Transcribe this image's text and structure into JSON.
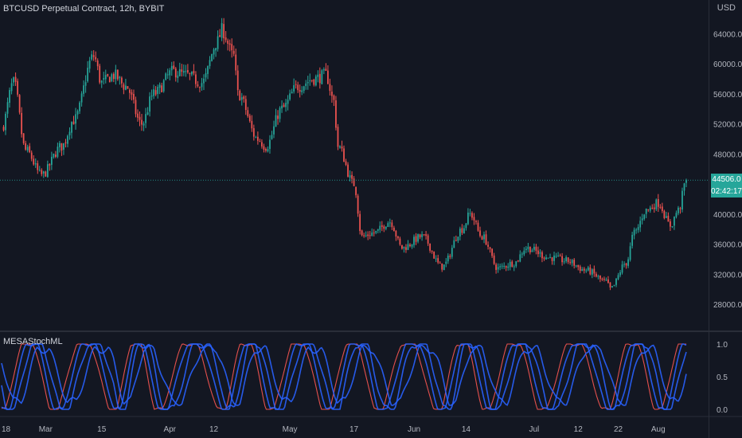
{
  "header": {
    "title": "BTCUSD Perpetual Contract, 12h, BYBIT",
    "currency": "USD"
  },
  "indicator": {
    "name": "MESAStochML"
  },
  "last_price": {
    "value": "44506.0",
    "countdown": "02:42:17"
  },
  "colors": {
    "background": "#131722",
    "up": "#26a69a",
    "down": "#ef5350",
    "stoch_blue": "#2962ff",
    "stoch_red": "#ef5350",
    "grid": "#2a2e39",
    "axis_text": "#b2b5be"
  },
  "chart_data": [
    {
      "type": "candlestick",
      "y_ticks": [
        28000,
        32000,
        36000,
        40000,
        44000,
        48000,
        52000,
        56000,
        60000,
        64000
      ],
      "y_tick_labels": [
        "28000.0",
        "32000.0",
        "36000.0",
        "40000.0",
        "44000.0",
        "48000.0",
        "52000.0",
        "56000.0",
        "60000.0",
        "64000.0"
      ],
      "ylim": [
        24500,
        68500
      ],
      "x_tick_labels": [
        "18",
        "Mar",
        "15",
        "Apr",
        "12",
        "May",
        "17",
        "Jun",
        "14",
        "Jul",
        "12",
        "22",
        "Aug"
      ],
      "x_range": [
        "2021-02-18",
        "2021-08-08"
      ],
      "close_anchors": [
        [
          "2021-02-18",
          51500
        ],
        [
          "2021-02-21",
          57500
        ],
        [
          "2021-02-24",
          48500
        ],
        [
          "2021-02-28",
          45200
        ],
        [
          "2021-03-05",
          49000
        ],
        [
          "2021-03-08",
          52500
        ],
        [
          "2021-03-13",
          61000
        ],
        [
          "2021-03-15",
          57500
        ],
        [
          "2021-03-18",
          58500
        ],
        [
          "2021-03-21",
          57000
        ],
        [
          "2021-03-25",
          52000
        ],
        [
          "2021-03-28",
          56000
        ],
        [
          "2021-04-02",
          59000
        ],
        [
          "2021-04-05",
          58500
        ],
        [
          "2021-04-09",
          57500
        ],
        [
          "2021-04-13",
          63000
        ],
        [
          "2021-04-14",
          64500
        ],
        [
          "2021-04-17",
          61000
        ],
        [
          "2021-04-18",
          56000
        ],
        [
          "2021-04-23",
          50000
        ],
        [
          "2021-04-25",
          49000
        ],
        [
          "2021-04-29",
          54000
        ],
        [
          "2021-05-03",
          57000
        ],
        [
          "2021-05-07",
          58000
        ],
        [
          "2021-05-10",
          58500
        ],
        [
          "2021-05-12",
          55000
        ],
        [
          "2021-05-13",
          49000
        ],
        [
          "2021-05-17",
          44000
        ],
        [
          "2021-05-19",
          37000
        ],
        [
          "2021-05-22",
          37500
        ],
        [
          "2021-05-26",
          39000
        ],
        [
          "2021-05-29",
          35500
        ],
        [
          "2021-06-03",
          37000
        ],
        [
          "2021-06-08",
          33000
        ],
        [
          "2021-06-13",
          38000
        ],
        [
          "2021-06-15",
          40000
        ],
        [
          "2021-06-18",
          37000
        ],
        [
          "2021-06-22",
          32800
        ],
        [
          "2021-06-26",
          33500
        ],
        [
          "2021-06-29",
          35500
        ],
        [
          "2021-07-05",
          34200
        ],
        [
          "2021-07-09",
          33800
        ],
        [
          "2021-07-14",
          32500
        ],
        [
          "2021-07-19",
          31000
        ],
        [
          "2021-07-20",
          30000
        ],
        [
          "2021-07-24",
          33500
        ],
        [
          "2021-07-26",
          37500
        ],
        [
          "2021-07-29",
          40500
        ],
        [
          "2021-08-01",
          41500
        ],
        [
          "2021-08-04",
          38500
        ],
        [
          "2021-08-06",
          40500
        ],
        [
          "2021-08-08",
          44506
        ]
      ],
      "last_price": 44506
    },
    {
      "type": "line",
      "ylim": [
        0,
        1
      ],
      "y_ticks": [
        0,
        0.5,
        1
      ],
      "y_tick_labels": [
        "0.0",
        "0.5",
        "1.0"
      ],
      "series": [
        {
          "color": "#ef5350",
          "phase": 0.0,
          "wave_days": [
            13,
            15,
            11,
            16,
            12,
            14,
            13,
            15,
            12,
            14,
            16,
            13
          ],
          "x_start": "2021-02-18",
          "x_end": "2021-08-08"
        },
        {
          "color": "#2962ff",
          "phase": 0.08,
          "wave_days": [
            13,
            15,
            11,
            16,
            12,
            14,
            13,
            15,
            12,
            14,
            16,
            13
          ],
          "x_start": "2021-02-18",
          "x_end": "2021-08-08"
        },
        {
          "color": "#2962ff",
          "phase": 0.18,
          "wave_days": [
            13,
            15,
            11,
            16,
            12,
            14,
            13,
            15,
            12,
            14,
            16,
            13
          ],
          "x_start": "2021-02-18",
          "x_end": "2021-08-08"
        },
        {
          "color": "#2962ff",
          "phase": 0.3,
          "wave_days": [
            13,
            15,
            11,
            16,
            12,
            14,
            13,
            15,
            12,
            14,
            16,
            13
          ],
          "x_start": "2021-02-18",
          "x_end": "2021-08-08"
        }
      ]
    }
  ]
}
